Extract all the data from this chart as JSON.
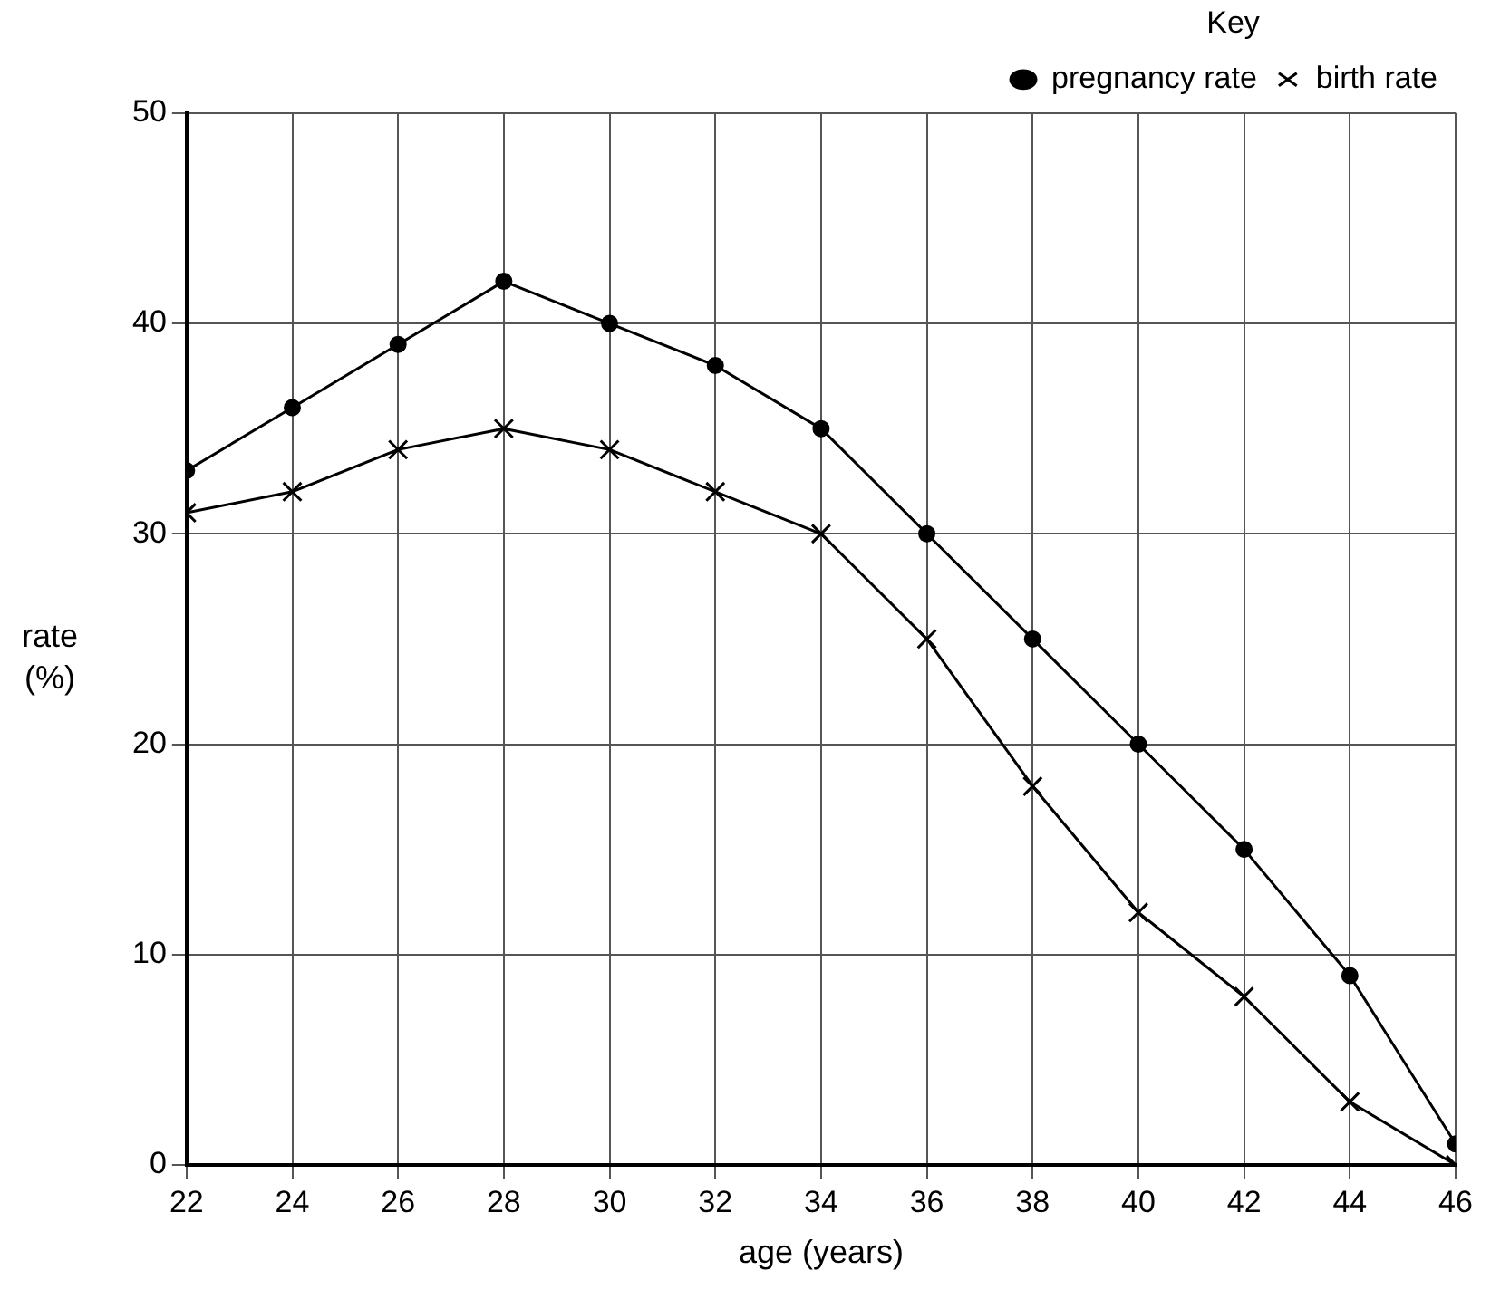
{
  "chart_data": {
    "type": "line",
    "xlabel": "age (years)",
    "ylabel": "rate\n(%)",
    "legend_title": "Key",
    "legend": "top right",
    "grid": true,
    "x": [
      22,
      24,
      26,
      28,
      30,
      32,
      34,
      36,
      38,
      40,
      42,
      44,
      46
    ],
    "xlim": [
      22,
      46
    ],
    "xticks": [
      22,
      24,
      26,
      28,
      30,
      32,
      34,
      36,
      38,
      40,
      42,
      44,
      46
    ],
    "ylim": [
      0,
      50
    ],
    "yticks": [
      0,
      10,
      20,
      30,
      40,
      50
    ],
    "series": [
      {
        "name": "pregnancy rate",
        "color": "#000000",
        "marker": "circle",
        "values": [
          33,
          36,
          39,
          42,
          40,
          38,
          35,
          30,
          25,
          20,
          15,
          9,
          1
        ]
      },
      {
        "name": "birth rate",
        "color": "#000000",
        "marker": "cross",
        "values": [
          31,
          32,
          34,
          35,
          34,
          32,
          30,
          25,
          18,
          12,
          8,
          3,
          0
        ]
      }
    ]
  }
}
